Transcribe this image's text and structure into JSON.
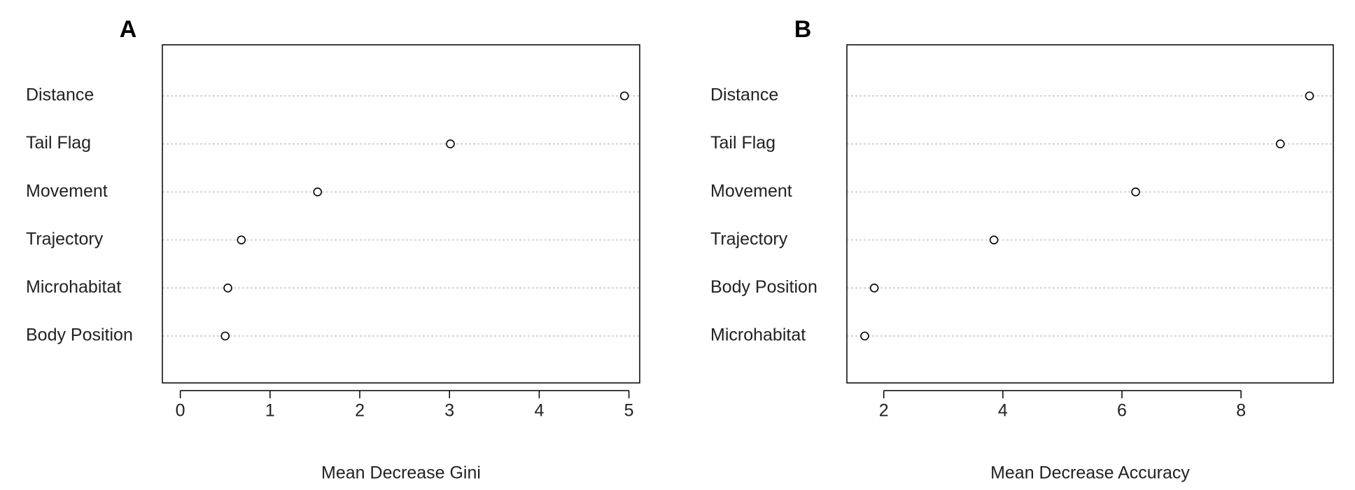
{
  "chart_data": [
    {
      "type": "dot",
      "panel_label": "A",
      "xlabel": "Mean Decrease Gini",
      "categories": [
        "Distance",
        "Tail Flag",
        "Movement",
        "Trajectory",
        "Microhabitat",
        "Body Position"
      ],
      "values": [
        4.95,
        3.01,
        1.53,
        0.68,
        0.53,
        0.5
      ],
      "xlim": [
        -0.2,
        5.12
      ],
      "xticks": [
        0,
        1,
        2,
        3,
        4,
        5
      ],
      "grid": true,
      "color": "#000000"
    },
    {
      "type": "dot",
      "panel_label": "B",
      "xlabel": "Mean Decrease Accuracy",
      "categories": [
        "Distance",
        "Tail Flag",
        "Movement",
        "Trajectory",
        "Body Position",
        "Microhabitat"
      ],
      "values": [
        9.15,
        8.66,
        6.23,
        3.85,
        1.84,
        1.68
      ],
      "xlim": [
        1.38,
        9.55
      ],
      "xticks": [
        2,
        4,
        6,
        8
      ],
      "grid": true,
      "color": "#000000"
    }
  ]
}
